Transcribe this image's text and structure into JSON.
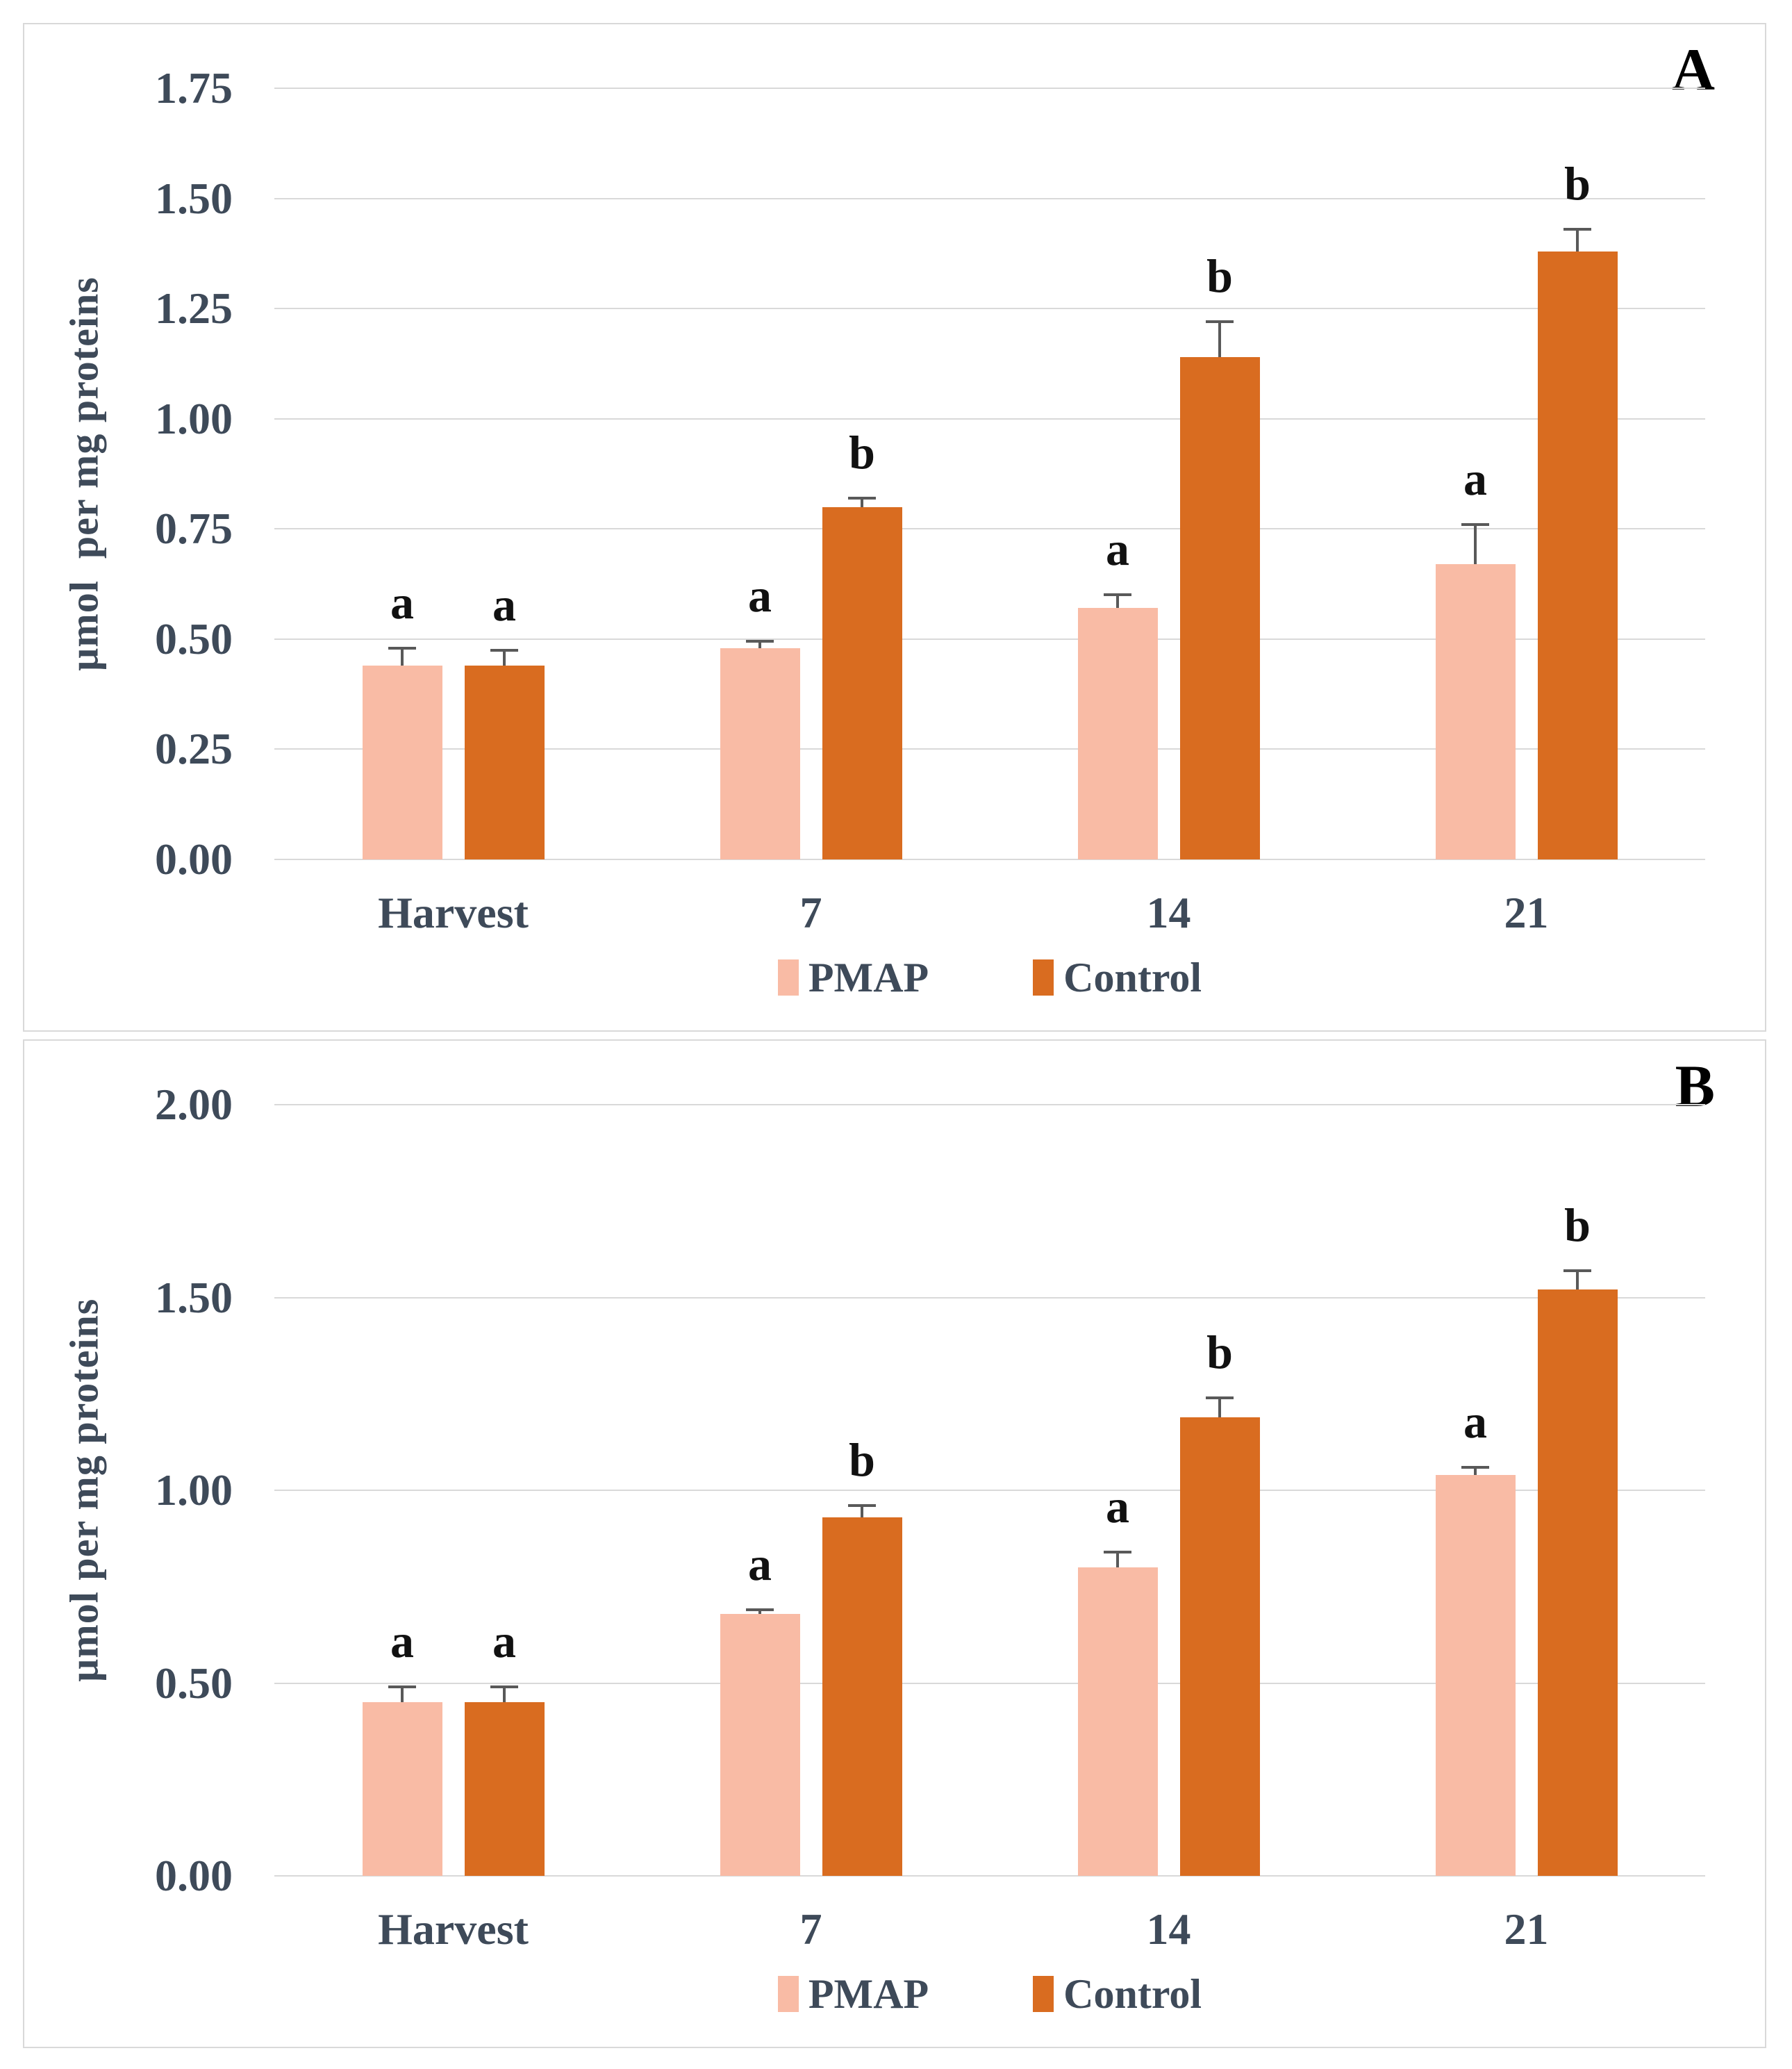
{
  "figure": {
    "description": "Two-panel grouped bar chart comparing PMAP and Control treatments over storage time",
    "panels_count": 2
  },
  "colors": {
    "pmap": "#F9BBA5",
    "control": "#D96C20",
    "gridline": "#D9D9D9",
    "axis_text": "#3E4A59",
    "error_bar": "#595959",
    "letter_text": "#111111",
    "panel_border": "#D9D9D9"
  },
  "chart_data": [
    {
      "panel_letter": "A",
      "type": "bar",
      "title": "",
      "xlabel": "",
      "ylabel": "µmol  per mg proteins",
      "categories": [
        "Harvest",
        "7",
        "14",
        "21"
      ],
      "y_axis": {
        "min": 0.0,
        "max": 1.75,
        "step": 0.25,
        "tick_labels": [
          "1.75",
          "1.50",
          "1.25",
          "1.00",
          "0.75",
          "0.50",
          "0.25",
          "0.00"
        ]
      },
      "grid": true,
      "legend_position": "bottom",
      "legend": [
        "PMAP",
        "Control"
      ],
      "series": [
        {
          "name": "PMAP",
          "color": "#F9BBA5",
          "values": [
            0.44,
            0.48,
            0.57,
            0.67
          ],
          "errors": [
            0.04,
            0.015,
            0.03,
            0.09
          ],
          "letters": [
            "a",
            "a",
            "a",
            "a"
          ]
        },
        {
          "name": "Control",
          "color": "#D96C20",
          "values": [
            0.44,
            0.8,
            1.14,
            1.38
          ],
          "errors": [
            0.035,
            0.02,
            0.08,
            0.05
          ],
          "letters": [
            "a",
            "b",
            "b",
            "b"
          ]
        }
      ]
    },
    {
      "panel_letter": "B",
      "type": "bar",
      "title": "",
      "xlabel": "",
      "ylabel": "µmol per mg proteins",
      "categories": [
        "Harvest",
        "7",
        "14",
        "21"
      ],
      "y_axis": {
        "min": 0.0,
        "max": 2.0,
        "step": 0.5,
        "tick_labels": [
          "2.00",
          "1.50",
          "1.00",
          "0.50",
          "0.00"
        ]
      },
      "grid": true,
      "legend_position": "bottom",
      "legend": [
        "PMAP",
        "Control"
      ],
      "series": [
        {
          "name": "PMAP",
          "color": "#F9BBA5",
          "values": [
            0.45,
            0.68,
            0.8,
            1.04
          ],
          "errors": [
            0.04,
            0.01,
            0.04,
            0.02
          ],
          "letters": [
            "a",
            "a",
            "a",
            "a"
          ]
        },
        {
          "name": "Control",
          "color": "#D96C20",
          "values": [
            0.45,
            0.93,
            1.19,
            1.52
          ],
          "errors": [
            0.04,
            0.03,
            0.05,
            0.05
          ],
          "letters": [
            "a",
            "b",
            "b",
            "b"
          ]
        }
      ]
    }
  ]
}
